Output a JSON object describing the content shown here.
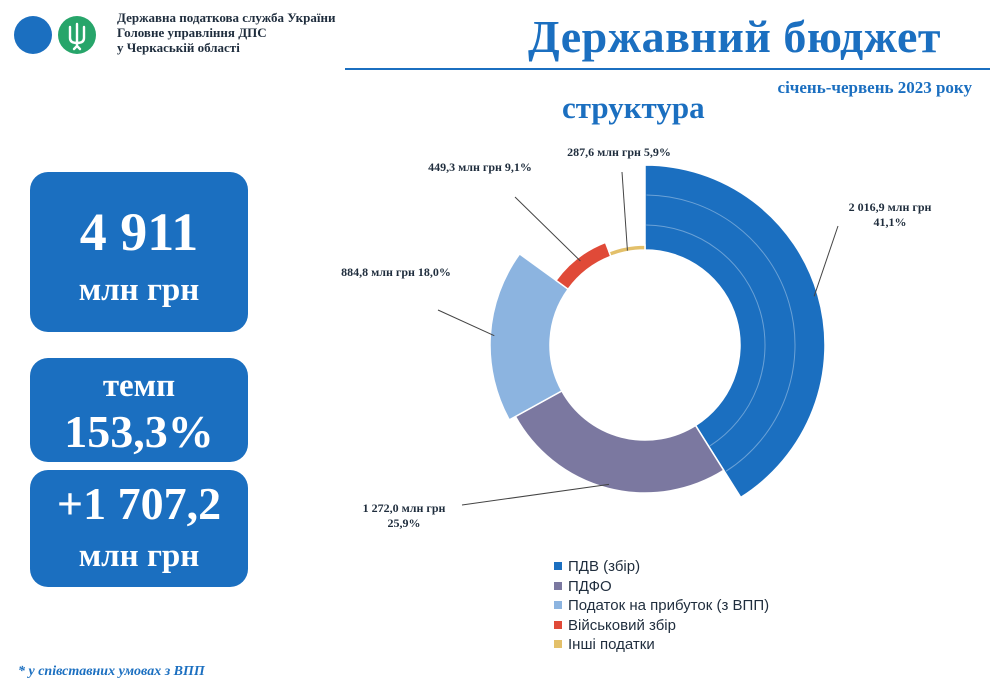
{
  "header": {
    "org_line1": "Державна податкова служба України",
    "org_line2": "Головне управління ДПС",
    "org_line3": "у Черкаській області",
    "title": "Державний бюджет",
    "period": "січень-червень 2023 року",
    "subtitle": "структура"
  },
  "tiles": {
    "total_value": "4 911",
    "total_unit": "млн грн",
    "rate_label": "темп",
    "rate_value": "153,3%",
    "delta_value": "+1 707,2",
    "delta_unit": "млн грн"
  },
  "footnote": "* у співставних умовах з ВПП",
  "colors": {
    "accent": "#1b6fc0",
    "pdv": "#1b6fc0",
    "pdfo": "#7b78a0",
    "profit": "#8cb4e0",
    "military": "#e04a38",
    "other": "#e3c06a"
  },
  "chart_data": {
    "type": "pie",
    "variant": "donut",
    "categories": [
      "ПДВ (збір)",
      "ПДФО",
      "Податок на прибуток (з ВПП)",
      "Військовий збір",
      "Інші податки"
    ],
    "values": [
      2016.9,
      1272.0,
      884.8,
      449.3,
      287.6
    ],
    "percents": [
      41.1,
      25.9,
      18.0,
      9.1,
      5.9
    ],
    "data_labels": [
      {
        "line1": "2 016,9 млн грн",
        "line2": "41,1%"
      },
      {
        "line1": "1 272,0 млн грн",
        "line2": "25,9%"
      },
      {
        "line1": "884,8 млн грн 18,0%",
        "line2": ""
      },
      {
        "line1": "449,3 млн грн 9,1%",
        "line2": ""
      },
      {
        "line1": "287,6 млн грн 5,9%",
        "line2": ""
      }
    ],
    "legend_position": "bottom",
    "title": "",
    "xlabel": "",
    "ylabel": ""
  }
}
